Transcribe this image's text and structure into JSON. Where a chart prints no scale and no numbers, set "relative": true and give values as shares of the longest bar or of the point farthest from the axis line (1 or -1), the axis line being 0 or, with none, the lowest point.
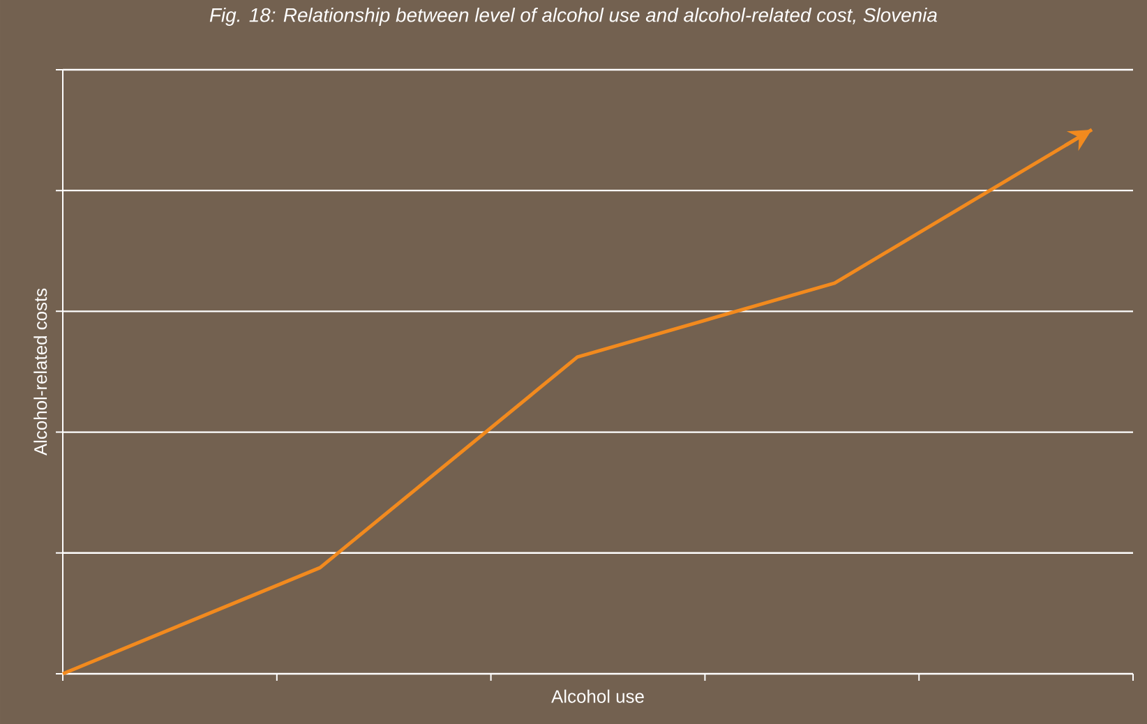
{
  "chart_data": {
    "type": "line",
    "title": "*Fig. 18: Relationship between level of alcohol use and alcohol-related cost, Slovenia*",
    "xlabel": "Alcohol use",
    "ylabel": "Alcohol-related costs",
    "relative": true,
    "categories": [
      null,
      null,
      null,
      null,
      null
    ],
    "series": [
      {
        "color": "#f28a1e",
        "values": [
          0,
          0.195,
          0.582,
          0.718,
          1
        ]
      }
    ],
    "grid": "y",
    "marker": "none",
    "line_style": "solid"
  }
}
